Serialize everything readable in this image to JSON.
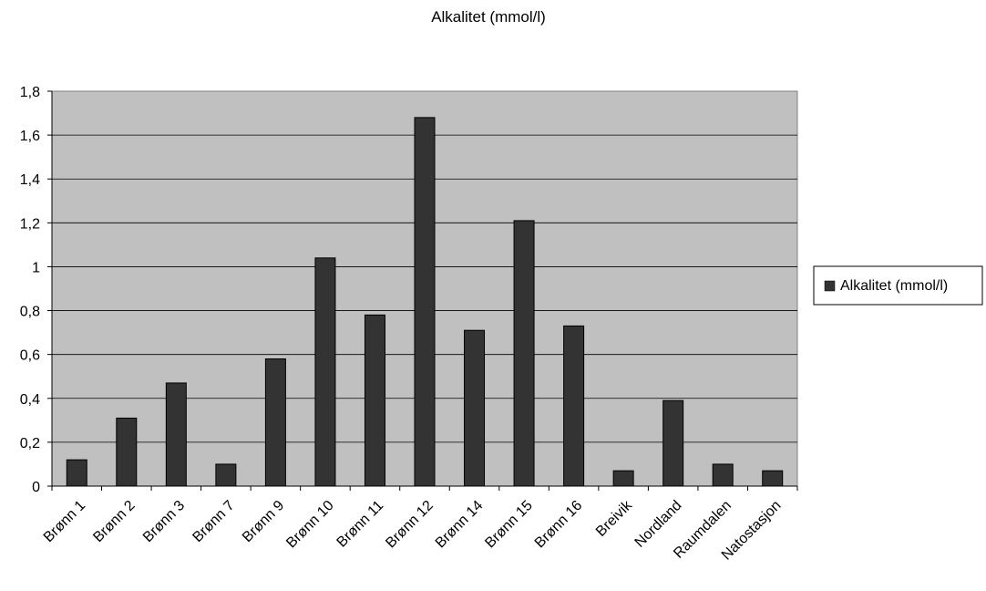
{
  "chart_data": {
    "type": "bar",
    "title": "Alkalitet (mmol/l)",
    "categories": [
      "Brønn 1",
      "Brønn 2",
      "Brønn 3",
      "Brønn 7",
      "Brønn 9",
      "Brønn 10",
      "Brønn 11",
      "Brønn 12",
      "Brønn 14",
      "Brønn 15",
      "Brønn 16",
      "Breivik",
      "Nordland",
      "Raumdalen",
      "Natostasjon"
    ],
    "series": [
      {
        "name": "Alkalitet (mmol/l)",
        "values": [
          0.12,
          0.31,
          0.47,
          0.1,
          0.58,
          1.04,
          0.78,
          1.68,
          0.71,
          1.21,
          0.73,
          0.07,
          0.39,
          0.1,
          0.07
        ],
        "color": "#333333"
      }
    ],
    "ylim": [
      0,
      1.8
    ],
    "yticks": [
      "0",
      "0,2",
      "0,4",
      "0,6",
      "0,8",
      "1",
      "1,2",
      "1,4",
      "1,6",
      "1,8"
    ],
    "xlabel": "",
    "ylabel": "",
    "grid": true,
    "legend_position": "right",
    "plot_background": "#c0c0c0"
  }
}
